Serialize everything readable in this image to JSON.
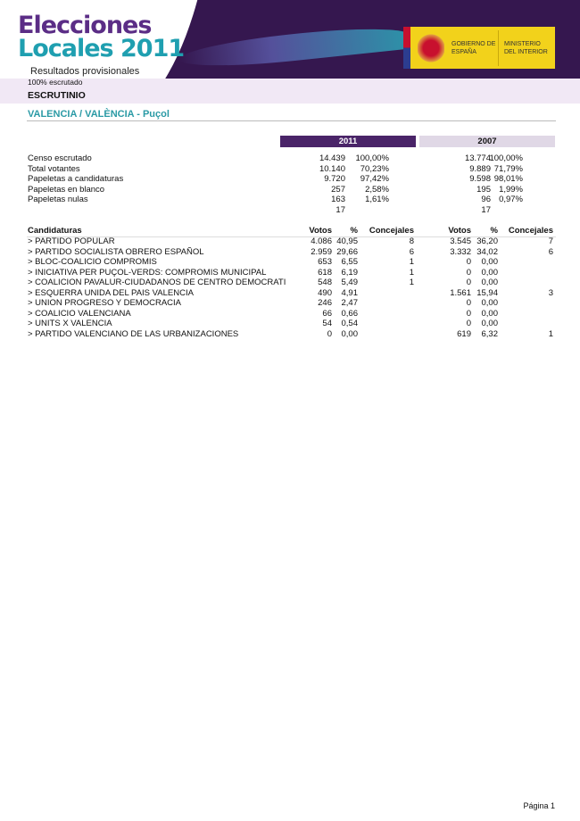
{
  "header": {
    "logo_line1": "Elecciones",
    "logo_line2": "Locales 2011",
    "gov_line1": "GOBIERNO DE ESPAÑA",
    "gov_line2": "MINISTERIO DEL INTERIOR",
    "subtitle": "Resultados provisionales",
    "progress_text": "100% escrutado",
    "section": "ESCRUTINIO"
  },
  "colors": {
    "purple": "#4a2468",
    "teal": "#2a9aa5",
    "lavender": "#f1e8f5",
    "gov_yellow": "#f2d21b"
  },
  "municipality": "VALENCIA / VALÈNCIA - Puçol",
  "years": [
    "2011",
    "2007"
  ],
  "summary": [
    {
      "label": "Censo escrutado",
      "v2011": "14.439",
      "p2011": "100,00%",
      "v2007": "13.774",
      "p2007": "100,00%"
    },
    {
      "label": "Total votantes",
      "v2011": "10.140",
      "p2011": "70,23%",
      "v2007": "9.889",
      "p2007": "71,79%"
    },
    {
      "label": "Papeletas a candidaturas",
      "v2011": "9.720",
      "p2011": "97,42%",
      "v2007": "9.598",
      "p2007": "98,01%"
    },
    {
      "label": "Papeletas en blanco",
      "v2011": "257",
      "p2011": "2,58%",
      "v2007": "195",
      "p2007": "1,99%"
    },
    {
      "label": "Papeletas nulas",
      "v2011": "163",
      "p2011": "1,61%",
      "v2007": "96",
      "p2007": "0,97%"
    },
    {
      "label": "",
      "v2011": "17",
      "p2011": "",
      "v2007": "17",
      "p2007": ""
    }
  ],
  "table": {
    "headers": [
      "Candidaturas",
      "Votos",
      "%",
      "Concejales",
      "Votos",
      "%",
      "Concejales"
    ],
    "rows": [
      [
        "> PARTIDO POPULAR",
        "4.086",
        "40,95",
        "8",
        "3.545",
        "36,20",
        "7"
      ],
      [
        "> PARTIDO SOCIALISTA OBRERO ESPAÑOL",
        "2.959",
        "29,66",
        "6",
        "3.332",
        "34,02",
        "6"
      ],
      [
        "> BLOC-COALICIO COMPROMIS",
        "653",
        "6,55",
        "1",
        "0",
        "0,00",
        ""
      ],
      [
        "> INICIATIVA PER PUÇOL-VERDS: COMPROMIS MUNICIPAL",
        "618",
        "6,19",
        "1",
        "0",
        "0,00",
        ""
      ],
      [
        "> COALICION PAVALUR-CIUDADANOS DE CENTRO DEMOCRATI",
        "548",
        "5,49",
        "1",
        "0",
        "0,00",
        ""
      ],
      [
        "> ESQUERRA UNIDA DEL PAIS VALENCIA",
        "490",
        "4,91",
        "",
        "1.561",
        "15,94",
        "3"
      ],
      [
        "> UNION PROGRESO Y DEMOCRACIA",
        "246",
        "2,47",
        "",
        "0",
        "0,00",
        ""
      ],
      [
        "> COALICIO VALENCIANA",
        "66",
        "0,66",
        "",
        "0",
        "0,00",
        ""
      ],
      [
        "> UNITS X VALENCIA",
        "54",
        "0,54",
        "",
        "0",
        "0,00",
        ""
      ],
      [
        "> PARTIDO VALENCIANO DE LAS URBANIZACIONES",
        "0",
        "0,00",
        "",
        "619",
        "6,32",
        "1"
      ]
    ]
  },
  "footer": {
    "page": "Página 1"
  }
}
